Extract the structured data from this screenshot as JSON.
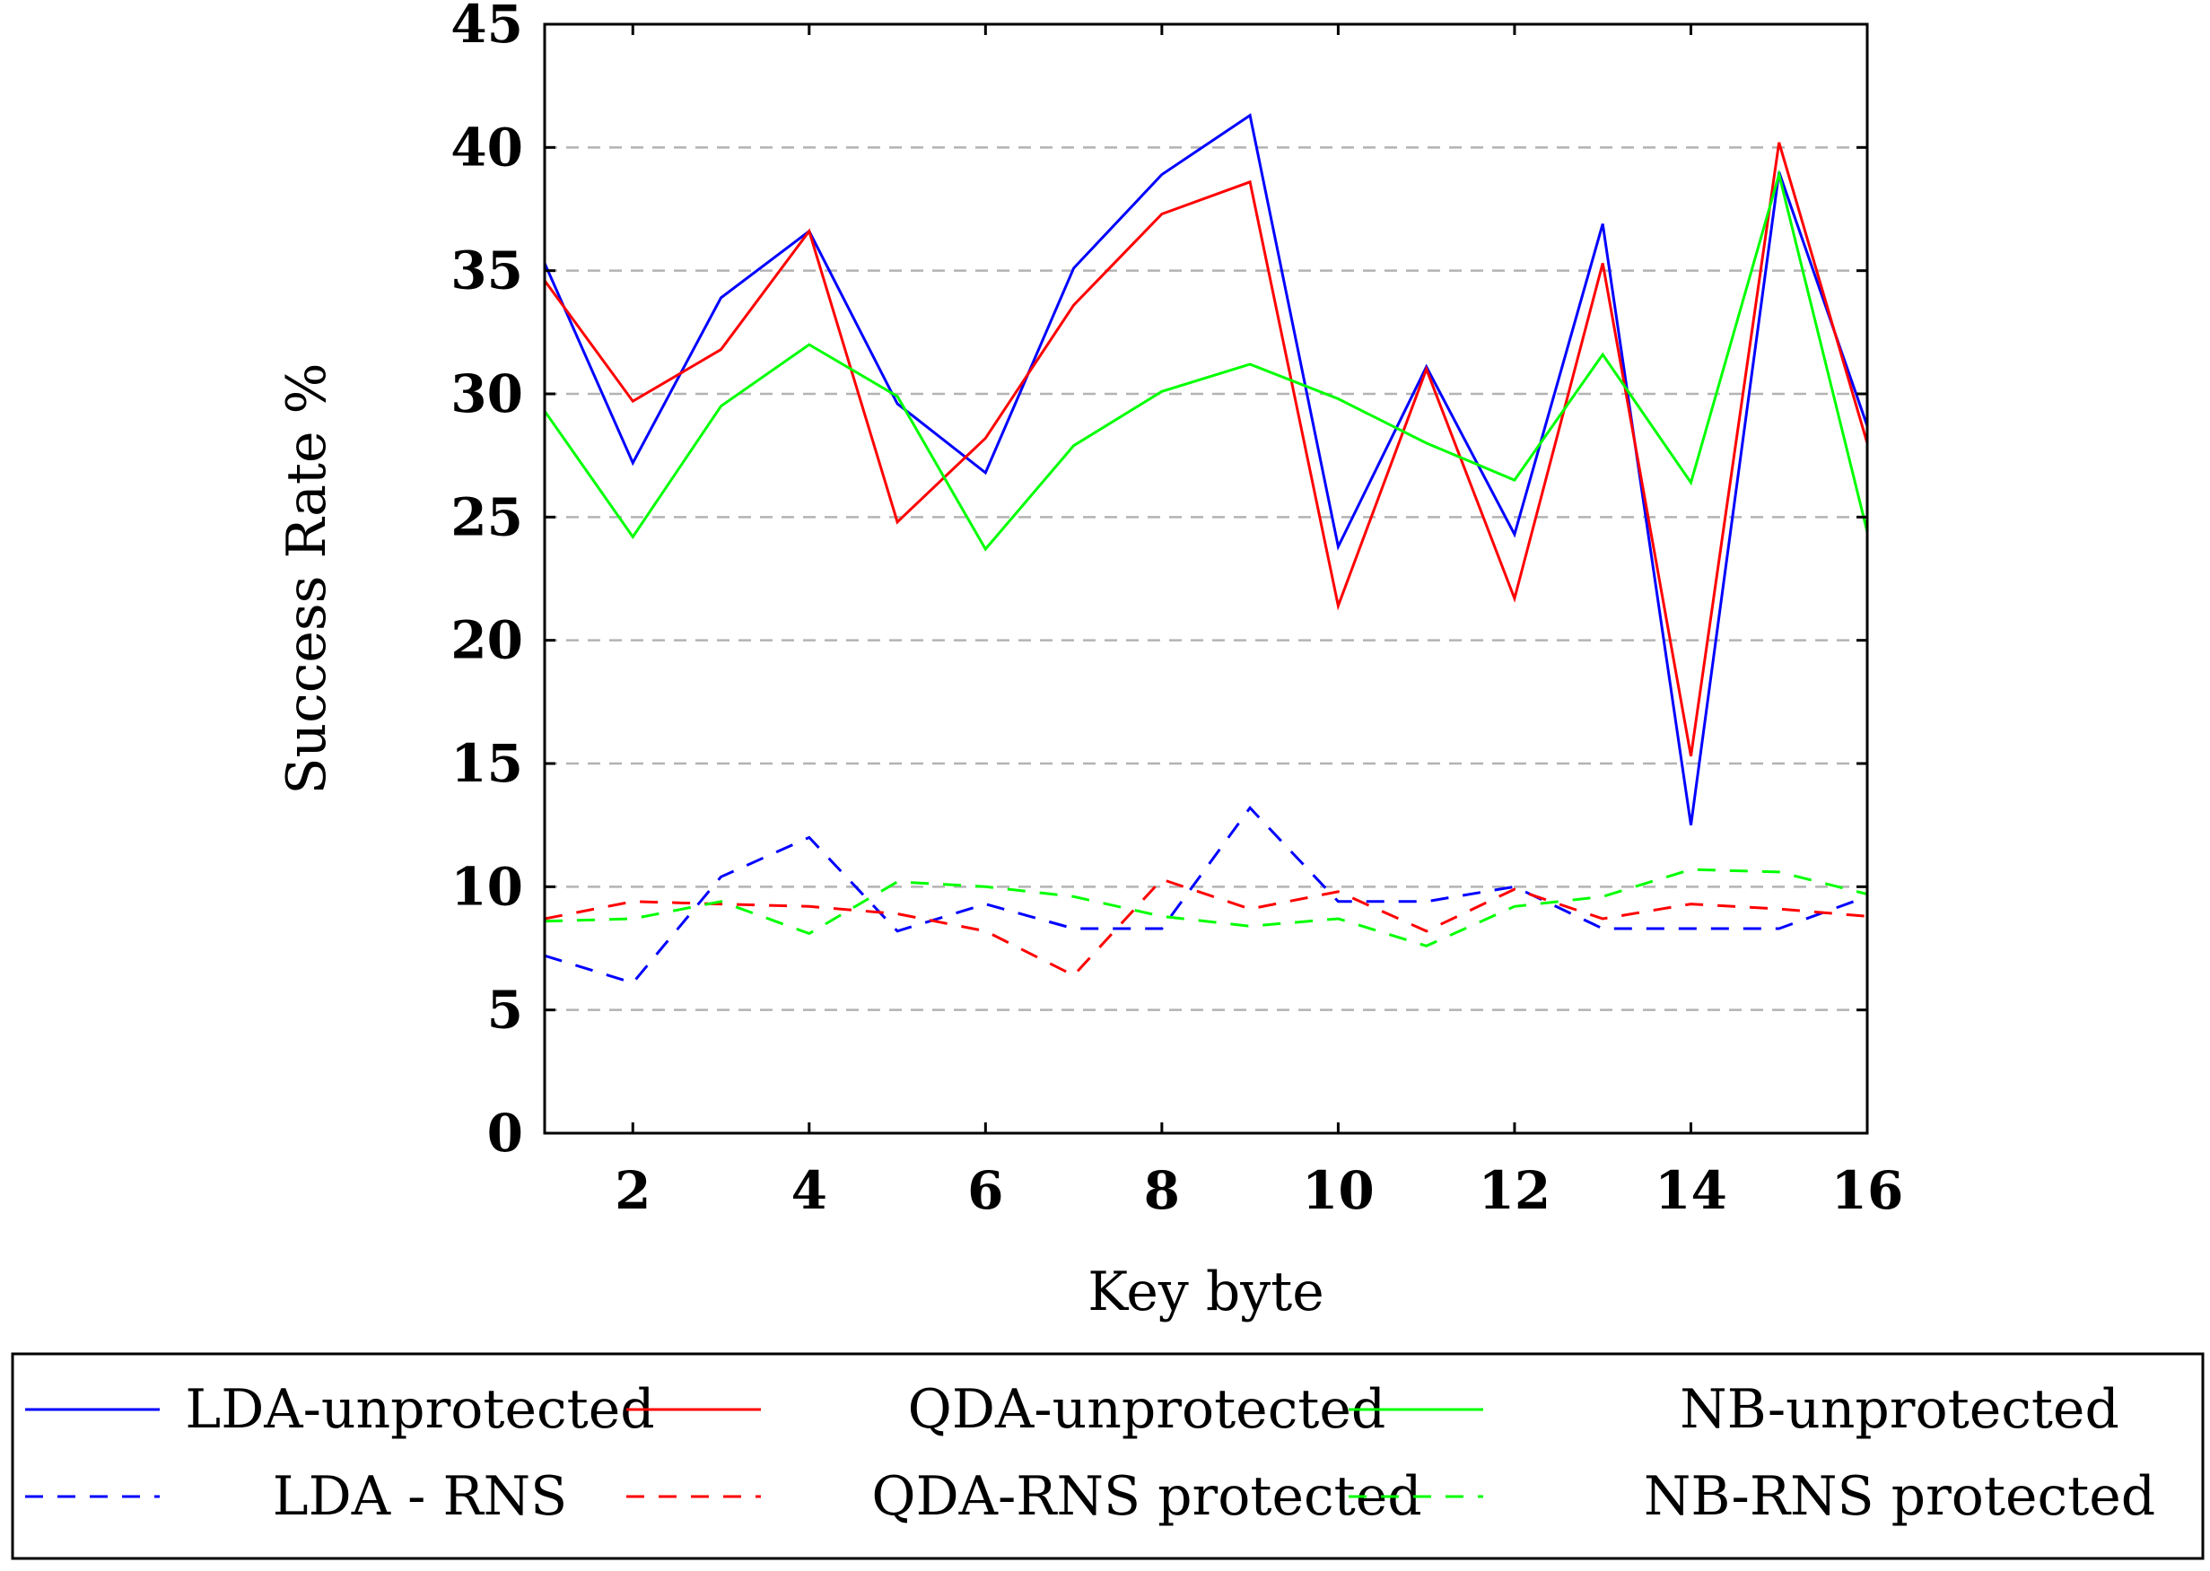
{
  "chart_data": {
    "type": "line",
    "title": "",
    "xlabel": "Key byte",
    "ylabel": "Success Rate %",
    "xlim": [
      1,
      16
    ],
    "ylim": [
      0,
      45
    ],
    "x": [
      1,
      2,
      3,
      4,
      5,
      6,
      7,
      8,
      9,
      10,
      11,
      12,
      13,
      14,
      15,
      16
    ],
    "xticks": [
      2,
      4,
      6,
      8,
      10,
      12,
      14,
      16
    ],
    "yticks": [
      0,
      5,
      10,
      15,
      20,
      25,
      30,
      35,
      40,
      45
    ],
    "grid": "horizontal dashed",
    "legend_position": "bottom, outside plot",
    "series": [
      {
        "name": "LDA-unprotected",
        "color": "#0000ff",
        "style": "solid",
        "values": [
          35.3,
          27.2,
          33.9,
          36.6,
          29.6,
          26.8,
          35.1,
          38.9,
          41.3,
          23.8,
          31.1,
          24.3,
          36.9,
          12.5,
          39.0,
          28.7
        ]
      },
      {
        "name": "QDA-unprotected",
        "color": "#ff0000",
        "style": "solid",
        "values": [
          34.6,
          29.7,
          31.8,
          36.6,
          24.8,
          28.2,
          33.6,
          37.3,
          38.6,
          21.4,
          31.0,
          21.7,
          35.3,
          15.3,
          40.2,
          28.0
        ]
      },
      {
        "name": "NB-unprotected",
        "color": "#00ff00",
        "style": "solid",
        "values": [
          29.3,
          24.2,
          29.5,
          32.0,
          29.9,
          23.7,
          27.9,
          30.1,
          31.2,
          29.8,
          28.0,
          26.5,
          31.6,
          26.4,
          38.9,
          24.4
        ]
      },
      {
        "name": "LDA - RNS",
        "color": "#0000ff",
        "style": "dashed",
        "values": [
          7.2,
          6.1,
          10.4,
          12.0,
          8.2,
          9.3,
          8.3,
          8.3,
          13.2,
          9.4,
          9.4,
          10.0,
          8.3,
          8.3,
          8.3,
          9.6
        ]
      },
      {
        "name": "QDA-RNS protected",
        "color": "#ff0000",
        "style": "dashed",
        "values": [
          8.7,
          9.4,
          9.3,
          9.2,
          8.9,
          8.2,
          6.4,
          10.3,
          9.1,
          9.8,
          8.2,
          9.9,
          8.7,
          9.3,
          9.1,
          8.8
        ]
      },
      {
        "name": "NB-RNS protected",
        "color": "#00ff00",
        "style": "dashed",
        "values": [
          8.6,
          8.7,
          9.4,
          8.1,
          10.2,
          10.0,
          9.6,
          8.8,
          8.4,
          8.7,
          7.6,
          9.2,
          9.6,
          10.7,
          10.6,
          9.7
        ]
      }
    ]
  }
}
